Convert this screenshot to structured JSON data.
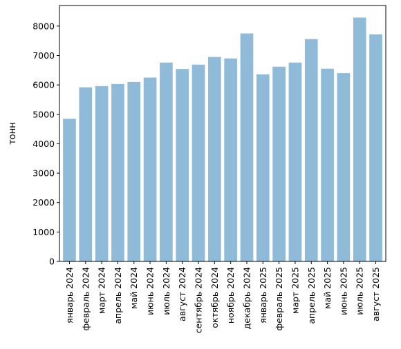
{
  "chart_data": {
    "type": "bar",
    "title": "",
    "xlabel": "",
    "ylabel": "тонн",
    "ylim": [
      0,
      8700
    ],
    "yticks": [
      0,
      1000,
      2000,
      3000,
      4000,
      5000,
      6000,
      7000,
      8000
    ],
    "grid": false,
    "bar_color": "#8fbbd9",
    "categories": [
      "январь 2024",
      "февраль 2024",
      "март 2024",
      "апрель 2024",
      "май 2024",
      "июнь 2024",
      "июль 2024",
      "август 2024",
      "сентябрь 2024",
      "октябрь 2024",
      "ноябрь 2024",
      "декабрь 2024",
      "январь 2025",
      "февраль 2025",
      "март 2025",
      "апрель 2025",
      "май 2025",
      "июнь 2025",
      "июль 2025",
      "август 2025"
    ],
    "values": [
      4850,
      5920,
      5960,
      6030,
      6100,
      6250,
      6760,
      6540,
      6690,
      6950,
      6900,
      7750,
      6360,
      6620,
      6760,
      7560,
      6550,
      6400,
      8290,
      7720
    ]
  }
}
